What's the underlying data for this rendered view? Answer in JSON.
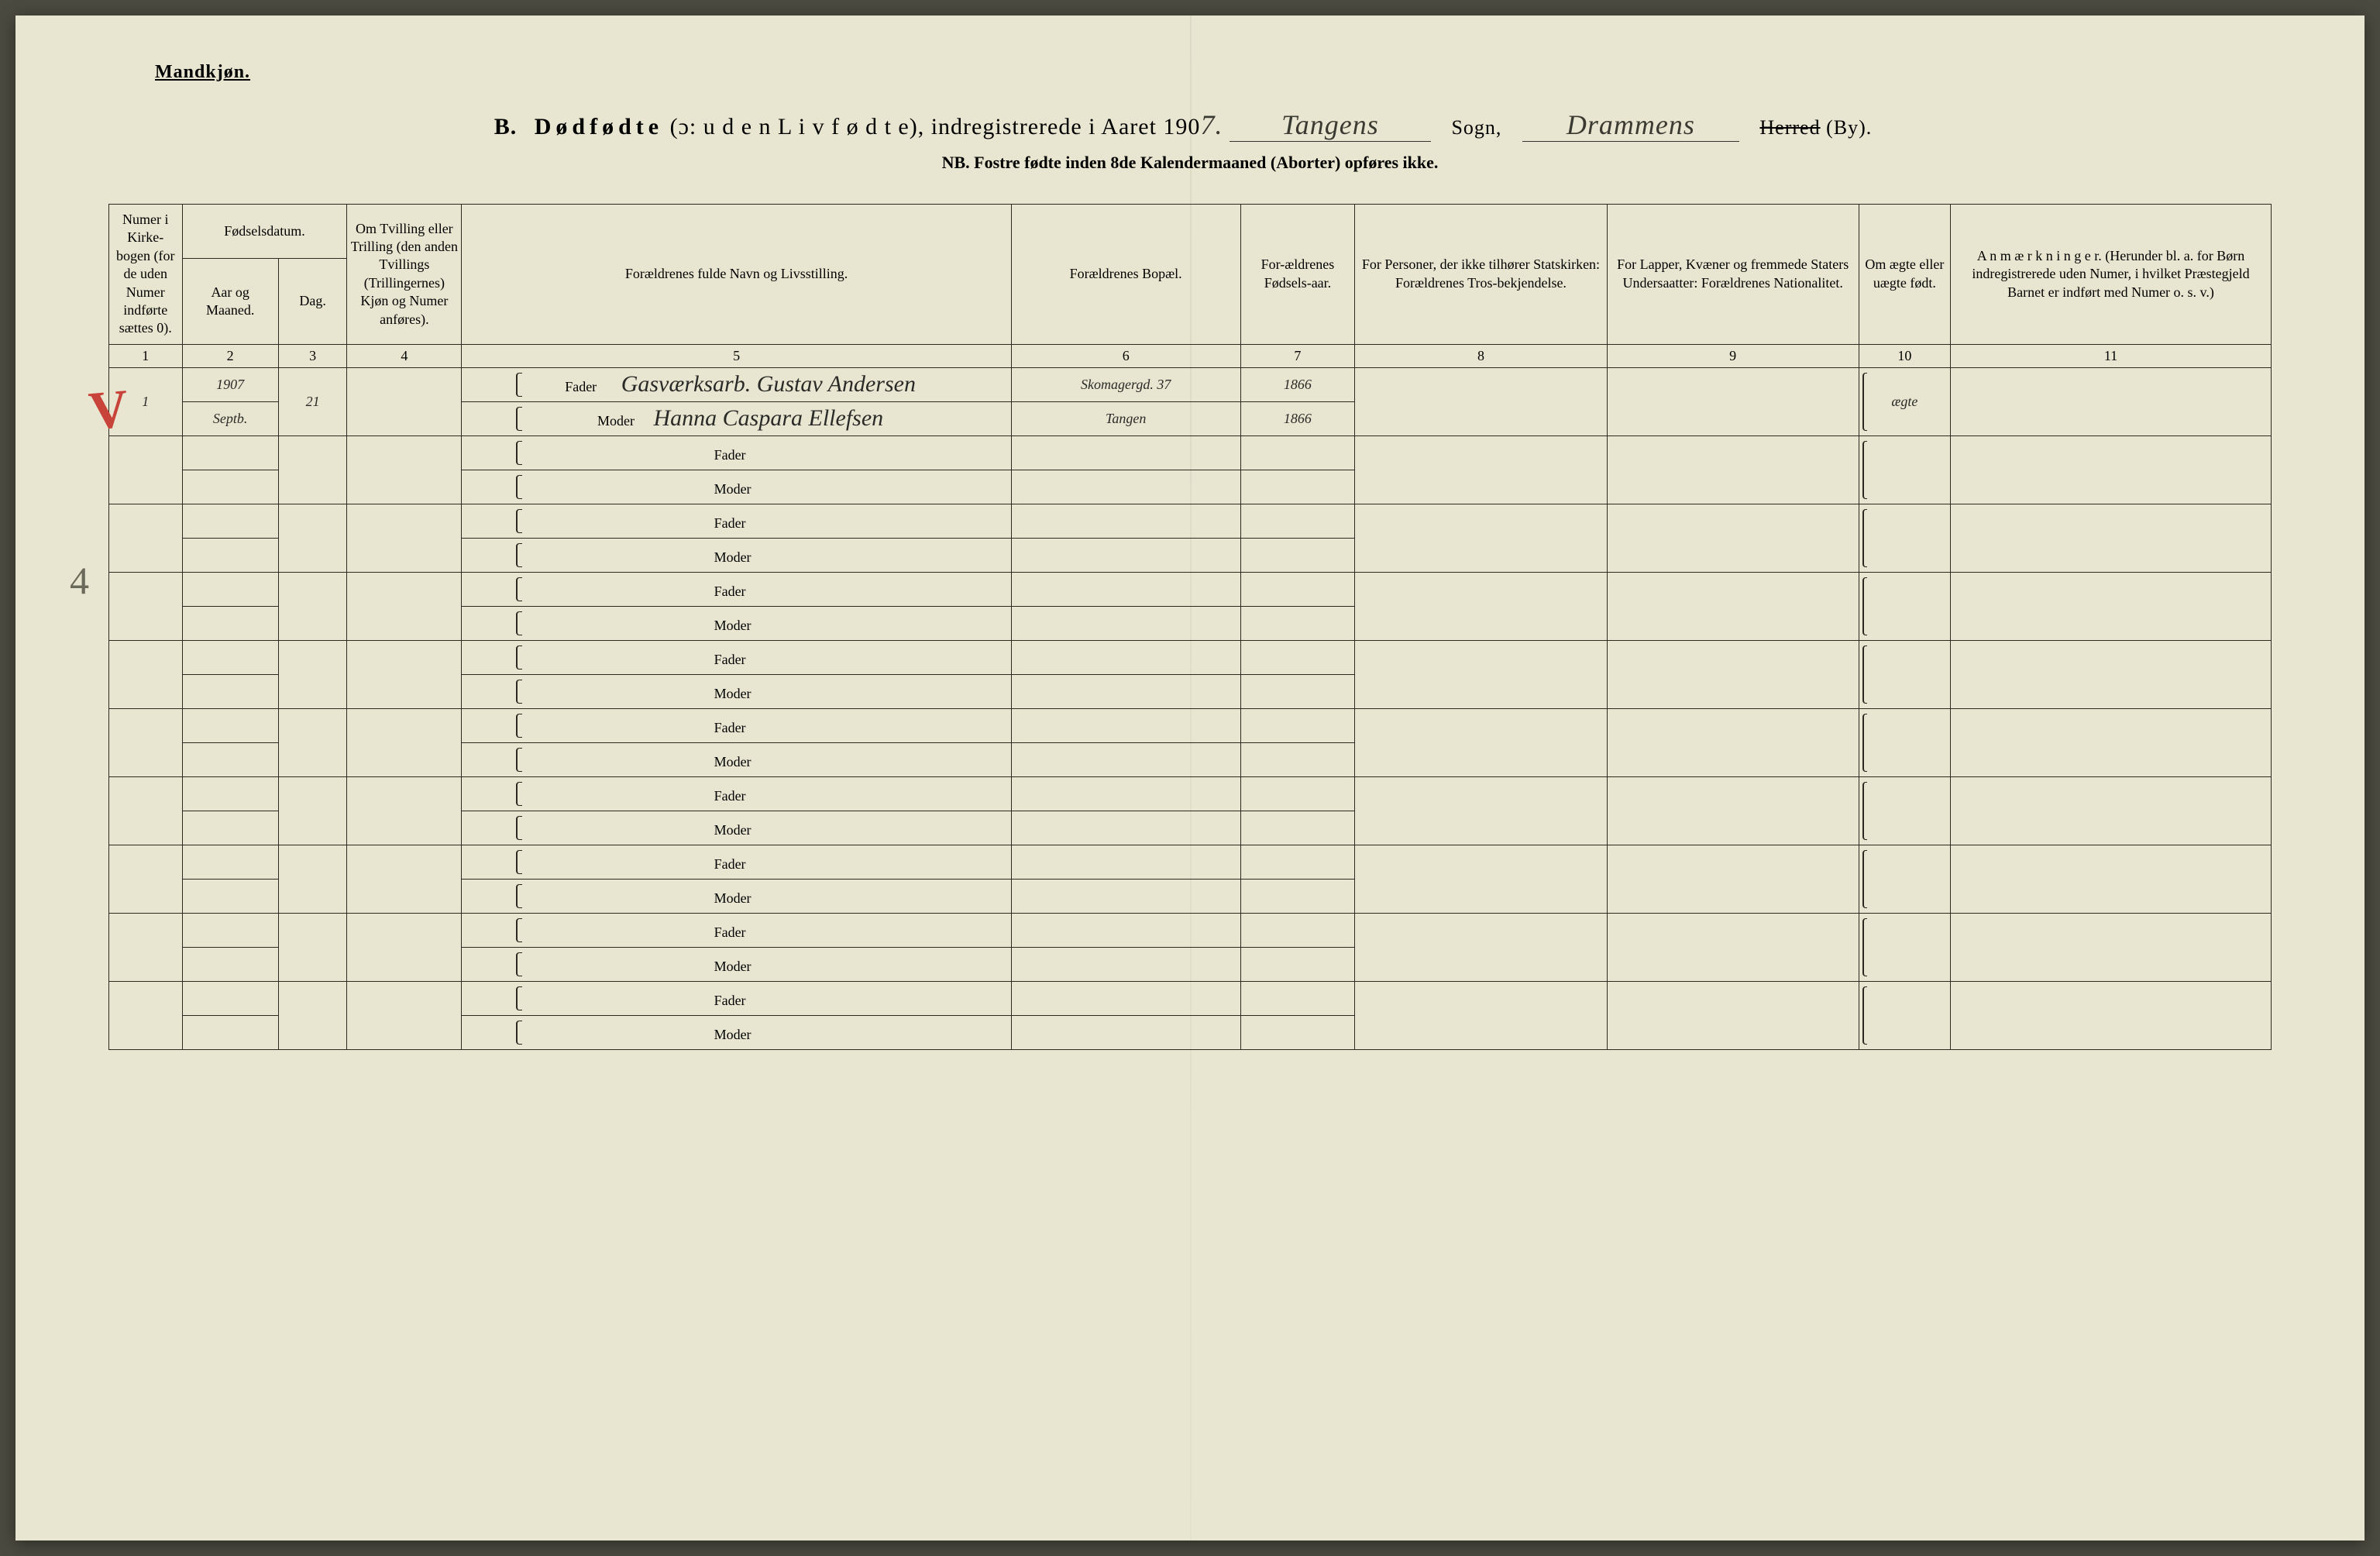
{
  "corner_label": "Mandkjøn.",
  "title": {
    "prefix": "B.",
    "main": "Dødfødte",
    "paren": "(ɔ: u d e n  L i v  f ø d t e),",
    "tail": "indregistrerede i Aaret 190",
    "year_suffix": "7.",
    "sogn_value": "Tangens",
    "sogn_label": "Sogn,",
    "herred_value": "Drammens",
    "herred_label_strike": "Herred",
    "herred_label_tail": "(By)."
  },
  "subtitle": "NB.  Fostre fødte inden 8de Kalendermaaned (Aborter) opføres ikke.",
  "headers": {
    "c1": "Numer i Kirke-bogen (for de uden Numer indførte sættes 0).",
    "c2_top": "Fødselsdatum.",
    "c2a": "Aar og Maaned.",
    "c2b": "Dag.",
    "c4": "Om Tvilling eller Trilling (den anden Tvillings (Trillingernes) Kjøn og Numer anføres).",
    "c5": "Forældrenes fulde Navn og Livsstilling.",
    "c6": "Forældrenes Bopæl.",
    "c7": "For-ældrenes Fødsels-aar.",
    "c8": "For Personer, der ikke tilhører Statskirken: Forældrenes Tros-bekjendelse.",
    "c9": "For Lapper, Kvæner og fremmede Staters Undersaatter: Forældrenes Nationalitet.",
    "c10": "Om ægte eller uægte født.",
    "c11": "A n m æ r k n i n g e r. (Herunder bl. a. for Børn indregistrerede uden Numer, i hvilket Præstegjeld Barnet er indført med Numer o. s. v.)"
  },
  "colnums": [
    "1",
    "2",
    "3",
    "4",
    "5",
    "6",
    "7",
    "8",
    "9",
    "10",
    "11"
  ],
  "parent_labels": {
    "fader": "Fader",
    "moder": "Moder"
  },
  "red_mark": "V",
  "pencil_mark": "4",
  "entries": [
    {
      "num": "1",
      "year_month": "1907",
      "month_hw": "Septb.",
      "day": "21",
      "fader_name": "Gasværksarb. Gustav Andersen",
      "moder_name": "Hanna Caspara Ellefsen",
      "fader_bopael": "Skomagergd. 37",
      "moder_bopael": "Tangen",
      "fader_aar": "1866",
      "moder_aar": "1866",
      "aegte": "ægte"
    }
  ]
}
